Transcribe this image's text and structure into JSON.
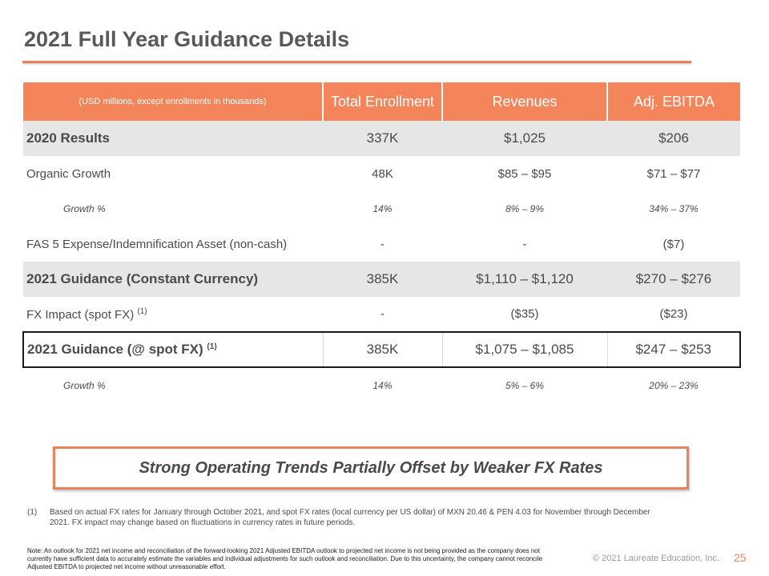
{
  "title": "2021 Full Year Guidance Details",
  "table": {
    "header": {
      "note": "(USD millions, except enrollments in thousands)",
      "enrollment": "Total Enrollment",
      "revenues": "Revenues",
      "ebitda": "Adj. EBITDA"
    },
    "rows": {
      "results_2020": {
        "label": "2020 Results",
        "enrollment": "337K",
        "revenues": "$1,025",
        "ebitda": "$206"
      },
      "organic_growth": {
        "label": "Organic Growth",
        "enrollment": "48K",
        "revenues": "$85 – $95",
        "ebitda": "$71 – $77"
      },
      "organic_growth_pct": {
        "label": "Growth %",
        "enrollment": "14%",
        "revenues": "8% – 9%",
        "ebitda": "34% – 37%"
      },
      "fas5": {
        "label": "FAS 5 Expense/Indemnification Asset (non-cash)",
        "enrollment": "-",
        "revenues": "-",
        "ebitda": "($7)"
      },
      "guidance_cc": {
        "label": "2021 Guidance (Constant Currency)",
        "enrollment": "385K",
        "revenues": "$1,110 – $1,120",
        "ebitda": "$270 – $276"
      },
      "fx_impact": {
        "label": "FX Impact (spot FX)",
        "footnote_ref": "(1)",
        "enrollment": "-",
        "revenues": "($35)",
        "ebitda": "($23)"
      },
      "guidance_spot": {
        "label": "2021 Guidance (@ spot FX)",
        "footnote_ref": "(1)",
        "enrollment": "385K",
        "revenues": "$1,075 – $1,085",
        "ebitda": "$247 – $253"
      },
      "total_growth_pct": {
        "label": "Growth %",
        "enrollment": "14%",
        "revenues": "5% – 6%",
        "ebitda": "20% – 23%"
      }
    }
  },
  "callout": "Strong Operating Trends Partially Offset by Weaker FX Rates",
  "footnote": {
    "number": "(1)",
    "text": "Based on actual FX rates for January through October 2021, and spot FX rates (local currency per US dollar) of MXN 20.46 & PEN 4.03 for November through December 2021. FX impact may change based on fluctuations in currency rates in future periods."
  },
  "note": "Note: An outlook for 2021 net income and reconciliation of the forward-looking 2021 Adjusted EBITDA outlook to projected net income is not being provided as the company does not currently have sufficient data to accurately estimate the variables and individual adjustments for such outlook and reconciliation.  Due to this uncertainty, the company cannot reconcile Adjusted EBITDA to projected net income without unreasonable effort.",
  "copyright": "© 2021 Laureate Education, Inc.",
  "page_number": "25",
  "colors": {
    "accent": "#f4845a",
    "rule": "#e8825a",
    "shade": "#e6e6e6"
  }
}
